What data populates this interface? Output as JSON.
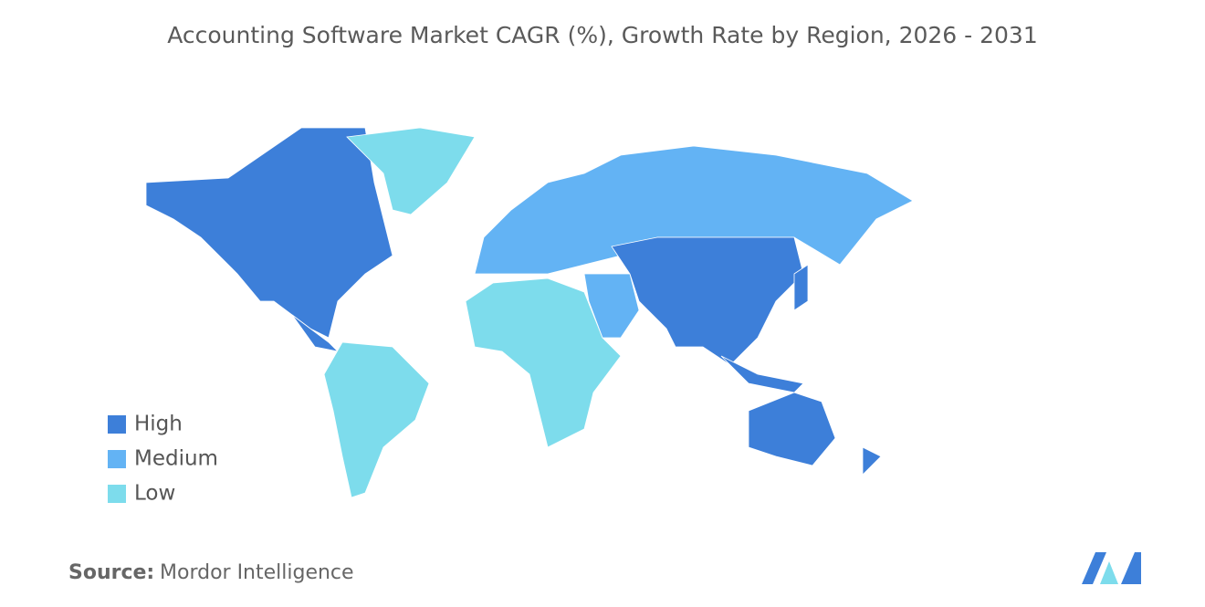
{
  "title": "Accounting Software Market CAGR (%), Growth Rate by Region, 2026 - 2031",
  "legend": [
    {
      "name": "High",
      "color": "#3d7fd9"
    },
    {
      "name": "Medium",
      "color": "#63b3f4"
    },
    {
      "name": "Low",
      "color": "#7ddcec"
    }
  ],
  "source": {
    "label": "Source:",
    "value": "Mordor Intelligence"
  }
}
